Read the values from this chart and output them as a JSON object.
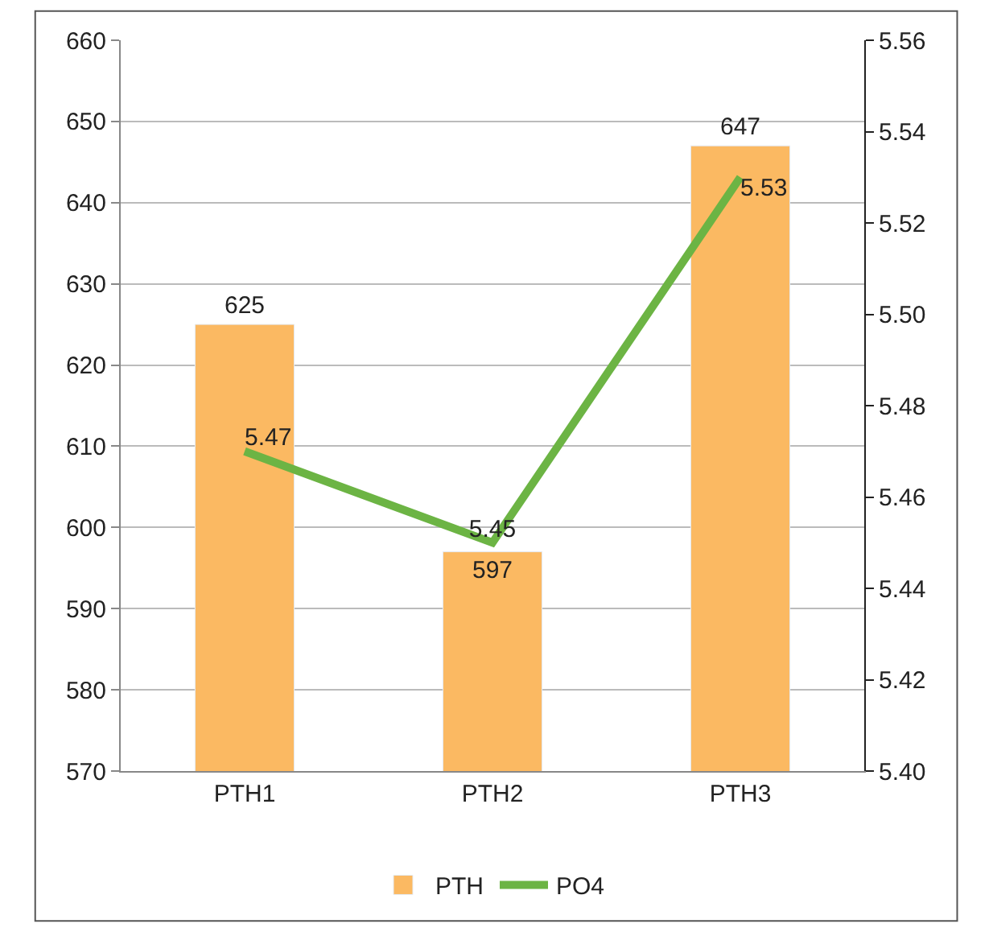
{
  "chart_data": {
    "type": "bar",
    "categories": [
      "PTH1",
      "PTH2",
      "PTH3"
    ],
    "series": [
      {
        "name": "PTH",
        "color": "#fbb962",
        "values": [
          625,
          597,
          647
        ]
      },
      {
        "name": "PO4",
        "type": "line",
        "axis": "y2",
        "color": "#6cb444",
        "values": [
          5.47,
          5.45,
          5.53
        ]
      }
    ],
    "ylim": [
      570,
      660
    ],
    "yticks": [
      570,
      580,
      590,
      600,
      610,
      620,
      630,
      640,
      650,
      660
    ],
    "y2lim": [
      5.4,
      5.56
    ],
    "y2ticks": [
      {
        "value": 5.4,
        "label": "5.40"
      },
      {
        "value": 5.42,
        "label": "5.42"
      },
      {
        "value": 5.44,
        "label": "5.44"
      },
      {
        "value": 5.46,
        "label": "5.46"
      },
      {
        "value": 5.48,
        "label": "5.48"
      },
      {
        "value": 5.5,
        "label": "5.50"
      },
      {
        "value": 5.52,
        "label": "5.52"
      },
      {
        "value": 5.54,
        "label": "5.54"
      },
      {
        "value": 5.56,
        "label": "5.56"
      }
    ],
    "grid": "y",
    "legend": "bottom",
    "data_labels": true,
    "marker": "none"
  }
}
